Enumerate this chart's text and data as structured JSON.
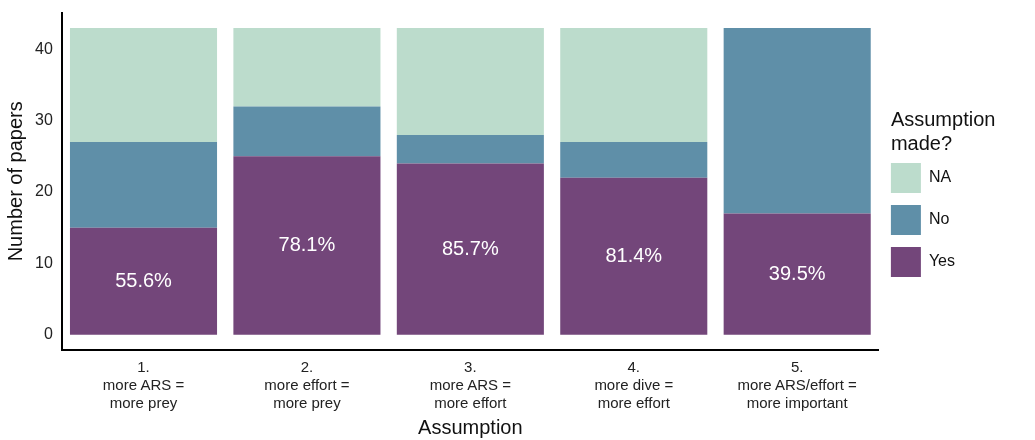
{
  "chart_data": {
    "type": "bar",
    "stacked": true,
    "xlabel": "Assumption",
    "ylabel": "Number of papers",
    "legend_title": "Assumption made?",
    "legend": "right",
    "grid": false,
    "categories": [
      "1.\nmore ARS =\nmore prey",
      "2.\nmore effort =\nmore prey",
      "3.\nmore ARS =\nmore effort",
      "4.\nmore dive =\nmore effort",
      "5.\nmore ARS/effort =\nmore important"
    ],
    "ylim": [
      -2.15,
      45.15
    ],
    "yticks": [
      0,
      10,
      20,
      30,
      40
    ],
    "series": [
      {
        "name": "Yes",
        "color": "#73467a",
        "values": [
          15,
          25,
          24,
          22,
          17
        ]
      },
      {
        "name": "No",
        "color": "#5f8fa8",
        "values": [
          12,
          7,
          4,
          5,
          26
        ]
      },
      {
        "name": "NA",
        "color": "#bcdccc",
        "values": [
          16,
          11,
          15,
          16,
          0
        ]
      }
    ],
    "annotations": [
      "55.6%",
      "78.1%",
      "85.7%",
      "81.4%",
      "39.5%"
    ]
  }
}
